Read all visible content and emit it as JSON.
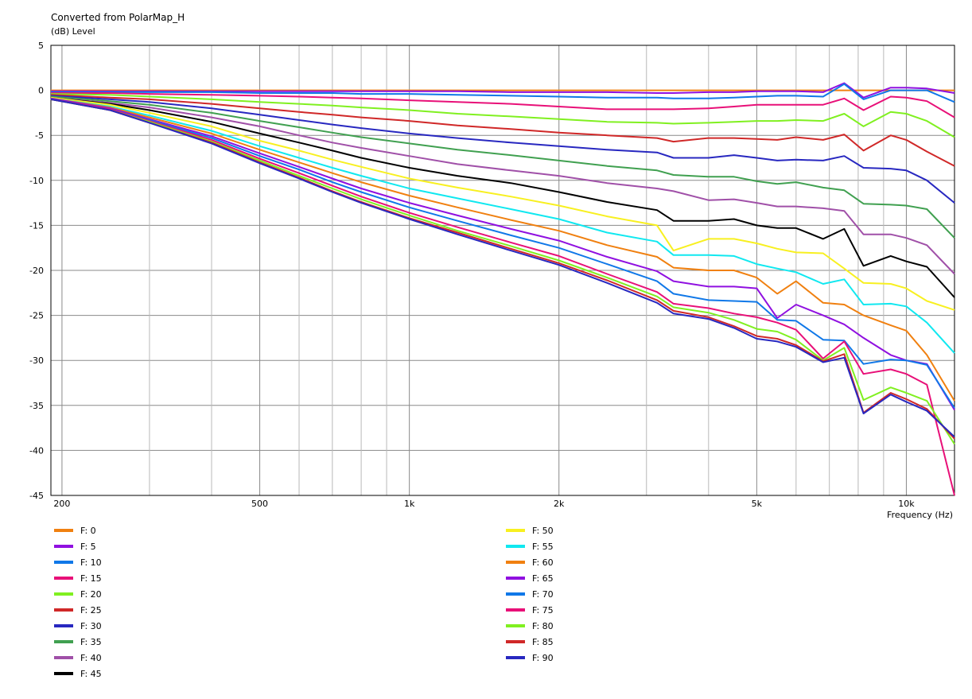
{
  "chart_data": {
    "type": "line",
    "title": "Converted from PolarMap_H",
    "ylabel": "(dB)  Level",
    "xlabel": "Frequency  (Hz)",
    "x_scale": "log",
    "xlim": [
      190,
      12500
    ],
    "ylim": [
      -45,
      5
    ],
    "y_ticks": [
      5,
      0,
      -5,
      -10,
      -15,
      -20,
      -25,
      -30,
      -35,
      -40,
      -45
    ],
    "x_tick_labels": [
      {
        "value": 200,
        "label": "200"
      },
      {
        "value": 500,
        "label": "500"
      },
      {
        "value": 1000,
        "label": "1k"
      },
      {
        "value": 2000,
        "label": "2k"
      },
      {
        "value": 5000,
        "label": "5k"
      },
      {
        "value": 10000,
        "label": "10k"
      }
    ],
    "x_minor_gridlines": [
      300,
      400,
      600,
      700,
      800,
      900,
      3000,
      4000,
      6000,
      7000,
      8000,
      9000
    ],
    "grid": true,
    "legend_position": "bottom",
    "x": [
      190,
      250,
      300,
      400,
      500,
      600,
      700,
      800,
      1000,
      1250,
      1600,
      2000,
      2500,
      3150,
      3400,
      4000,
      4500,
      5000,
      5500,
      6000,
      6800,
      7500,
      8200,
      9300,
      10000,
      11000,
      12500
    ],
    "series": [
      {
        "name": "F: 0",
        "color": "#f08010",
        "values": [
          0,
          0,
          0,
          0,
          0,
          0,
          0,
          0,
          0,
          0,
          0,
          0,
          0,
          0,
          0,
          0,
          0,
          0,
          0,
          0,
          0,
          0,
          0,
          0,
          0,
          0,
          0
        ]
      },
      {
        "name": "F: 5",
        "color": "#9010e0",
        "values": [
          -0.1,
          -0.1,
          -0.1,
          -0.1,
          -0.1,
          -0.1,
          -0.1,
          -0.1,
          -0.1,
          -0.1,
          -0.2,
          -0.2,
          -0.2,
          -0.3,
          -0.3,
          -0.2,
          -0.2,
          -0.1,
          -0.1,
          -0.1,
          -0.2,
          0.8,
          -0.8,
          0.3,
          0.3,
          0.2,
          -0.3
        ]
      },
      {
        "name": "F: 10",
        "color": "#1078e8",
        "values": [
          -0.2,
          -0.2,
          -0.2,
          -0.2,
          -0.3,
          -0.3,
          -0.3,
          -0.4,
          -0.4,
          -0.5,
          -0.6,
          -0.7,
          -0.8,
          -0.8,
          -0.9,
          -0.9,
          -0.8,
          -0.7,
          -0.6,
          -0.6,
          -0.7,
          0.7,
          -1.0,
          0,
          0,
          0,
          -1.3
        ]
      },
      {
        "name": "F: 15",
        "color": "#e81078",
        "values": [
          -0.3,
          -0.3,
          -0.4,
          -0.5,
          -0.6,
          -0.7,
          -0.8,
          -0.9,
          -1.1,
          -1.3,
          -1.5,
          -1.8,
          -2.1,
          -2.1,
          -2.1,
          -2.0,
          -1.8,
          -1.6,
          -1.6,
          -1.6,
          -1.6,
          -0.9,
          -2.2,
          -0.7,
          -0.8,
          -1.2,
          -3.0
        ]
      },
      {
        "name": "F: 20",
        "color": "#80f020",
        "values": [
          -0.4,
          -0.5,
          -0.7,
          -1.0,
          -1.3,
          -1.5,
          -1.7,
          -1.9,
          -2.2,
          -2.6,
          -2.9,
          -3.2,
          -3.5,
          -3.6,
          -3.7,
          -3.6,
          -3.5,
          -3.4,
          -3.4,
          -3.3,
          -3.4,
          -2.6,
          -4.0,
          -2.4,
          -2.6,
          -3.4,
          -5.2
        ]
      },
      {
        "name": "F: 25",
        "color": "#d02828",
        "values": [
          -0.5,
          -0.8,
          -1.0,
          -1.5,
          -2.0,
          -2.4,
          -2.7,
          -3.0,
          -3.4,
          -3.9,
          -4.3,
          -4.7,
          -5.0,
          -5.3,
          -5.7,
          -5.3,
          -5.3,
          -5.4,
          -5.5,
          -5.2,
          -5.5,
          -4.9,
          -6.7,
          -5.0,
          -5.5,
          -6.8,
          -8.4
        ]
      },
      {
        "name": "F: 30",
        "color": "#2828c0",
        "values": [
          -0.6,
          -1.0,
          -1.3,
          -2.0,
          -2.7,
          -3.3,
          -3.8,
          -4.2,
          -4.8,
          -5.3,
          -5.8,
          -6.2,
          -6.6,
          -6.9,
          -7.5,
          -7.5,
          -7.2,
          -7.5,
          -7.8,
          -7.7,
          -7.8,
          -7.3,
          -8.6,
          -8.7,
          -8.9,
          -10.0,
          -12.5
        ]
      },
      {
        "name": "F: 35",
        "color": "#40a050",
        "values": [
          -0.7,
          -1.2,
          -1.6,
          -2.5,
          -3.4,
          -4.1,
          -4.7,
          -5.2,
          -5.9,
          -6.6,
          -7.2,
          -7.8,
          -8.4,
          -8.9,
          -9.4,
          -9.6,
          -9.6,
          -10.1,
          -10.4,
          -10.2,
          -10.8,
          -11.1,
          -12.6,
          -12.7,
          -12.8,
          -13.2,
          -16.4
        ]
      },
      {
        "name": "F: 40",
        "color": "#a050a8",
        "values": [
          -0.8,
          -1.4,
          -1.9,
          -3.0,
          -4.0,
          -5.0,
          -5.8,
          -6.4,
          -7.3,
          -8.2,
          -8.9,
          -9.5,
          -10.3,
          -10.9,
          -11.2,
          -12.2,
          -12.1,
          -12.5,
          -12.9,
          -12.9,
          -13.1,
          -13.4,
          -16.0,
          -16.0,
          -16.4,
          -17.2,
          -20.4
        ]
      },
      {
        "name": "F: 45",
        "color": "#000000",
        "values": [
          -0.8,
          -1.5,
          -2.2,
          -3.5,
          -4.8,
          -5.8,
          -6.7,
          -7.5,
          -8.6,
          -9.5,
          -10.3,
          -11.3,
          -12.4,
          -13.3,
          -14.5,
          -14.5,
          -14.3,
          -15.0,
          -15.3,
          -15.3,
          -16.5,
          -15.4,
          -19.5,
          -18.4,
          -19.0,
          -19.6,
          -23.0
        ]
      },
      {
        "name": "F: 50",
        "color": "#f8f020",
        "values": [
          -0.8,
          -1.6,
          -2.5,
          -4.0,
          -5.6,
          -6.7,
          -7.7,
          -8.5,
          -9.8,
          -10.8,
          -11.8,
          -12.8,
          -14.0,
          -15.0,
          -17.8,
          -16.5,
          -16.5,
          -17.0,
          -17.6,
          -18.0,
          -18.1,
          -19.8,
          -21.4,
          -21.5,
          -22.0,
          -23.4,
          -24.4
        ]
      },
      {
        "name": "F: 55",
        "color": "#10e8f0",
        "values": [
          -0.9,
          -1.8,
          -2.8,
          -4.5,
          -6.2,
          -7.5,
          -8.6,
          -9.5,
          -10.9,
          -12.0,
          -13.2,
          -14.3,
          -15.8,
          -16.8,
          -18.3,
          -18.3,
          -18.4,
          -19.3,
          -19.8,
          -20.2,
          -21.5,
          -21.0,
          -23.8,
          -23.7,
          -24.0,
          -25.8,
          -29.2
        ]
      },
      {
        "name": "F: 60",
        "color": "#f08010",
        "values": [
          -0.9,
          -1.9,
          -3.0,
          -4.8,
          -6.6,
          -8.0,
          -9.2,
          -10.2,
          -11.7,
          -13.0,
          -14.4,
          -15.6,
          -17.2,
          -18.5,
          -19.7,
          -20.0,
          -20.0,
          -20.8,
          -22.6,
          -21.2,
          -23.6,
          -23.8,
          -25.0,
          -26.1,
          -26.7,
          -29.4,
          -34.5
        ]
      },
      {
        "name": "F: 65",
        "color": "#9010e0",
        "values": [
          -0.9,
          -2.0,
          -3.2,
          -5.1,
          -7.0,
          -8.5,
          -9.8,
          -10.9,
          -12.5,
          -13.9,
          -15.4,
          -16.7,
          -18.5,
          -20.1,
          -21.2,
          -21.8,
          -21.8,
          -22.0,
          -25.3,
          -23.8,
          -25.0,
          -26.0,
          -27.5,
          -29.4,
          -30.0,
          -30.4,
          -35.5
        ]
      },
      {
        "name": "F: 70",
        "color": "#1078e8",
        "values": [
          -1.0,
          -2.1,
          -3.3,
          -5.3,
          -7.3,
          -8.8,
          -10.2,
          -11.3,
          -13.0,
          -14.5,
          -16.1,
          -17.5,
          -19.3,
          -21.2,
          -22.6,
          -23.3,
          -23.4,
          -23.5,
          -25.5,
          -25.6,
          -27.7,
          -27.8,
          -30.4,
          -29.9,
          -30.0,
          -30.5,
          -35.3
        ]
      },
      {
        "name": "F: 75",
        "color": "#e81078",
        "values": [
          -1.0,
          -2.1,
          -3.4,
          -5.5,
          -7.6,
          -9.2,
          -10.6,
          -11.8,
          -13.6,
          -15.2,
          -16.9,
          -18.4,
          -20.4,
          -22.4,
          -23.7,
          -24.2,
          -24.8,
          -25.2,
          -25.8,
          -26.6,
          -29.8,
          -27.9,
          -31.5,
          -31.0,
          -31.5,
          -32.7,
          -45.0
        ]
      },
      {
        "name": "F: 80",
        "color": "#80f020",
        "values": [
          -1.0,
          -2.2,
          -3.5,
          -5.7,
          -7.8,
          -9.5,
          -10.9,
          -12.1,
          -13.9,
          -15.6,
          -17.3,
          -18.9,
          -20.8,
          -22.9,
          -24.1,
          -24.7,
          -25.5,
          -26.5,
          -26.8,
          -27.7,
          -30.0,
          -28.6,
          -34.4,
          -33.0,
          -33.6,
          -34.5,
          -39.3
        ]
      },
      {
        "name": "F: 85",
        "color": "#d02828",
        "values": [
          -1.0,
          -2.2,
          -3.6,
          -5.8,
          -8.0,
          -9.7,
          -11.2,
          -12.4,
          -14.2,
          -15.8,
          -17.6,
          -19.2,
          -21.1,
          -23.3,
          -24.5,
          -25.2,
          -26.2,
          -27.3,
          -27.6,
          -28.3,
          -30.1,
          -29.3,
          -35.8,
          -33.6,
          -34.3,
          -35.4,
          -38.7
        ]
      },
      {
        "name": "F: 90",
        "color": "#2828c0",
        "values": [
          -1.0,
          -2.2,
          -3.6,
          -5.9,
          -8.1,
          -9.8,
          -11.3,
          -12.5,
          -14.3,
          -16.0,
          -17.8,
          -19.4,
          -21.4,
          -23.6,
          -24.8,
          -25.4,
          -26.4,
          -27.6,
          -27.9,
          -28.5,
          -30.2,
          -29.7,
          -35.9,
          -33.8,
          -34.6,
          -35.6,
          -38.5
        ]
      }
    ]
  }
}
